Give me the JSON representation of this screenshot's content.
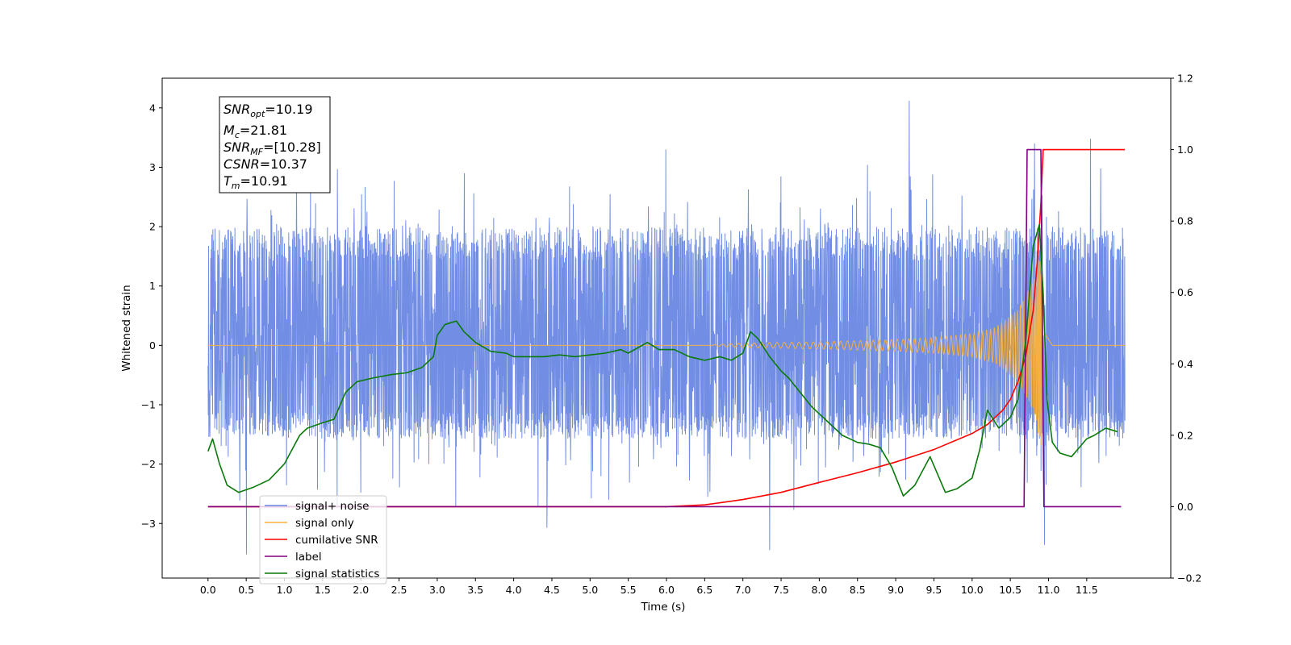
{
  "chart_data": {
    "type": "line",
    "xlabel": "Time (s)",
    "ylabel": "Whitened strain",
    "xlim": [
      -0.6,
      12.6
    ],
    "ylim": [
      -3.92,
      4.5
    ],
    "y2lim": [
      -0.2,
      1.2
    ],
    "xticks": [
      0.0,
      0.5,
      1.0,
      1.5,
      2.0,
      2.5,
      3.0,
      3.5,
      4.0,
      4.5,
      5.0,
      5.5,
      6.0,
      6.5,
      7.0,
      7.5,
      8.0,
      8.5,
      9.0,
      9.5,
      10.0,
      10.5,
      11.0,
      11.5
    ],
    "xtick_labels": [
      "0.0",
      "0.5",
      "1.0",
      "1.5",
      "2.0",
      "2.5",
      "3.0",
      "3.5",
      "4.0",
      "4.5",
      "5.0",
      "5.5",
      "6.0",
      "6.5",
      "7.0",
      "7.5",
      "8.0",
      "8.5",
      "9.0",
      "9.5",
      "10.0",
      "10.5",
      "11.0",
      "11.5"
    ],
    "yticks": [
      -3,
      -2,
      -1,
      0,
      1,
      2,
      3,
      4
    ],
    "ytick_labels": [
      "−3",
      "−2",
      "−1",
      "0",
      "1",
      "2",
      "3",
      "4"
    ],
    "y2ticks": [
      -0.2,
      0.0,
      0.2,
      0.4,
      0.6,
      0.8,
      1.0,
      1.2
    ],
    "y2tick_labels": [
      "−0.2",
      "0.0",
      "0.2",
      "0.4",
      "0.6",
      "0.8",
      "1.0",
      "1.2"
    ],
    "grid": false,
    "legend_position": "lower-left",
    "info_box": {
      "lines": [
        {
          "sym": "SNR",
          "sub": "opt",
          "value": "=10.19"
        },
        {
          "sym": "M",
          "sub": "c",
          "value": "=21.81"
        },
        {
          "sym": "SNR",
          "sub": "MF",
          "value": "=[10.28]"
        },
        {
          "sym": "CSNR",
          "sub": "",
          "value": "=10.37"
        },
        {
          "sym": "T",
          "sub": "m",
          "value": "=10.91"
        }
      ]
    },
    "noise": {
      "name": "signal+ noise",
      "color": "#6a88e3",
      "x_range": [
        0.0,
        12.0
      ],
      "typical_range": [
        -1.5,
        1.9
      ],
      "extreme_range": [
        -3.5,
        4.1
      ],
      "note_peaks": [
        {
          "x": 9.18,
          "y": 4.12
        },
        {
          "x": 10.82,
          "y": 3.4
        },
        {
          "x": 11.55,
          "y": 3.48
        },
        {
          "x": 0.5,
          "y": -3.52
        },
        {
          "x": 7.35,
          "y": -3.45
        },
        {
          "x": 10.95,
          "y": -3.36
        }
      ]
    },
    "series": [
      {
        "name": "signal only",
        "color": "#f5b041",
        "axis": "left",
        "kind": "chirp",
        "x_range": [
          0.0,
          12.0
        ],
        "merger_time": 10.91,
        "envelope": [
          [
            6.5,
            0.0
          ],
          [
            7.0,
            0.04
          ],
          [
            8.0,
            0.06
          ],
          [
            9.0,
            0.1
          ],
          [
            9.5,
            0.13
          ],
          [
            10.0,
            0.2
          ],
          [
            10.3,
            0.3
          ],
          [
            10.6,
            0.6
          ],
          [
            10.8,
            1.1
          ],
          [
            10.91,
            1.8
          ],
          [
            10.95,
            0.4
          ],
          [
            11.05,
            0.0
          ]
        ]
      },
      {
        "name": "cumilative SNR",
        "color": "#ff0000",
        "axis": "right",
        "points": [
          [
            0.0,
            0.0
          ],
          [
            6.0,
            0.0
          ],
          [
            6.5,
            0.005
          ],
          [
            7.0,
            0.02
          ],
          [
            7.5,
            0.04
          ],
          [
            8.0,
            0.068
          ],
          [
            8.5,
            0.095
          ],
          [
            9.0,
            0.125
          ],
          [
            9.5,
            0.16
          ],
          [
            10.0,
            0.205
          ],
          [
            10.2,
            0.23
          ],
          [
            10.4,
            0.27
          ],
          [
            10.5,
            0.3
          ],
          [
            10.6,
            0.35
          ],
          [
            10.7,
            0.42
          ],
          [
            10.8,
            0.55
          ],
          [
            10.85,
            0.68
          ],
          [
            10.9,
            0.85
          ],
          [
            10.93,
            1.0
          ],
          [
            12.0,
            1.0
          ]
        ]
      },
      {
        "name": "label",
        "color": "#800080",
        "axis": "right",
        "points": [
          [
            0.0,
            0.0
          ],
          [
            10.68,
            0.0
          ],
          [
            10.72,
            1.0
          ],
          [
            10.9,
            1.0
          ],
          [
            10.94,
            0.0
          ],
          [
            11.95,
            0.0
          ]
        ]
      },
      {
        "name": "signal statistics",
        "color": "#0a7a0a",
        "axis": "right",
        "points": [
          [
            0.0,
            0.155
          ],
          [
            0.06,
            0.19
          ],
          [
            0.15,
            0.12
          ],
          [
            0.25,
            0.06
          ],
          [
            0.4,
            0.04
          ],
          [
            0.6,
            0.055
          ],
          [
            0.8,
            0.075
          ],
          [
            1.0,
            0.12
          ],
          [
            1.2,
            0.2
          ],
          [
            1.3,
            0.22
          ],
          [
            1.5,
            0.235
          ],
          [
            1.65,
            0.245
          ],
          [
            1.8,
            0.32
          ],
          [
            1.95,
            0.35
          ],
          [
            2.15,
            0.36
          ],
          [
            2.4,
            0.37
          ],
          [
            2.6,
            0.375
          ],
          [
            2.8,
            0.39
          ],
          [
            2.95,
            0.42
          ],
          [
            3.0,
            0.48
          ],
          [
            3.1,
            0.51
          ],
          [
            3.25,
            0.52
          ],
          [
            3.35,
            0.49
          ],
          [
            3.5,
            0.46
          ],
          [
            3.7,
            0.435
          ],
          [
            3.9,
            0.43
          ],
          [
            4.0,
            0.42
          ],
          [
            4.2,
            0.42
          ],
          [
            4.4,
            0.42
          ],
          [
            4.6,
            0.425
          ],
          [
            4.8,
            0.42
          ],
          [
            5.0,
            0.425
          ],
          [
            5.2,
            0.43
          ],
          [
            5.4,
            0.44
          ],
          [
            5.5,
            0.43
          ],
          [
            5.75,
            0.46
          ],
          [
            5.9,
            0.44
          ],
          [
            6.1,
            0.44
          ],
          [
            6.3,
            0.42
          ],
          [
            6.5,
            0.41
          ],
          [
            6.7,
            0.42
          ],
          [
            6.85,
            0.41
          ],
          [
            7.0,
            0.43
          ],
          [
            7.1,
            0.49
          ],
          [
            7.2,
            0.47
          ],
          [
            7.35,
            0.42
          ],
          [
            7.5,
            0.38
          ],
          [
            7.6,
            0.36
          ],
          [
            7.75,
            0.32
          ],
          [
            7.9,
            0.28
          ],
          [
            8.1,
            0.24
          ],
          [
            8.3,
            0.2
          ],
          [
            8.5,
            0.18
          ],
          [
            8.65,
            0.175
          ],
          [
            8.8,
            0.165
          ],
          [
            8.95,
            0.11
          ],
          [
            9.1,
            0.03
          ],
          [
            9.25,
            0.06
          ],
          [
            9.45,
            0.14
          ],
          [
            9.55,
            0.09
          ],
          [
            9.65,
            0.04
          ],
          [
            9.8,
            0.05
          ],
          [
            10.0,
            0.08
          ],
          [
            10.1,
            0.16
          ],
          [
            10.2,
            0.27
          ],
          [
            10.35,
            0.22
          ],
          [
            10.5,
            0.25
          ],
          [
            10.6,
            0.3
          ],
          [
            10.7,
            0.46
          ],
          [
            10.8,
            0.73
          ],
          [
            10.88,
            0.79
          ],
          [
            10.93,
            0.6
          ],
          [
            10.98,
            0.3
          ],
          [
            11.05,
            0.18
          ],
          [
            11.15,
            0.15
          ],
          [
            11.3,
            0.14
          ],
          [
            11.5,
            0.19
          ],
          [
            11.6,
            0.2
          ],
          [
            11.75,
            0.22
          ],
          [
            11.9,
            0.21
          ]
        ]
      }
    ],
    "legend": [
      {
        "name": "signal+ noise",
        "color": "#6a88e3"
      },
      {
        "name": "signal only",
        "color": "#f5b041"
      },
      {
        "name": "cumilative SNR",
        "color": "#ff0000"
      },
      {
        "name": "label",
        "color": "#800080"
      },
      {
        "name": "signal statistics",
        "color": "#0a7a0a"
      }
    ]
  }
}
